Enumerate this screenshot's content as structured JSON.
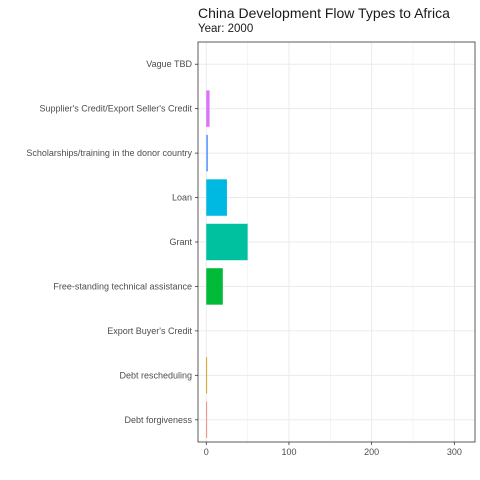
{
  "chart_data": {
    "type": "bar",
    "orientation": "horizontal",
    "title": "China Development Flow Types to Africa",
    "subtitle": "Year: 2000",
    "xlabel": "",
    "ylabel": "",
    "xlim": [
      -10,
      325
    ],
    "x_ticks": [
      0,
      100,
      200,
      300
    ],
    "x_tick_labels": [
      "0",
      "100",
      "200",
      "300"
    ],
    "grid": true,
    "legend": "none",
    "categories": [
      "Vague TBD",
      "Supplier's Credit/Export Seller's Credit",
      "Scholarships/training in the donor country",
      "Loan",
      "Grant",
      "Free-standing technical assistance",
      "Export Buyer's Credit",
      "Debt rescheduling",
      "Debt forgiveness"
    ],
    "values": [
      0,
      4,
      2,
      25,
      50,
      20,
      0,
      1,
      1
    ],
    "colors": [
      "#FF61C3",
      "#DB72FB",
      "#619CFF",
      "#00B9E3",
      "#00C19F",
      "#00BA38",
      "#93AA00",
      "#D39200",
      "#F8766D"
    ]
  }
}
